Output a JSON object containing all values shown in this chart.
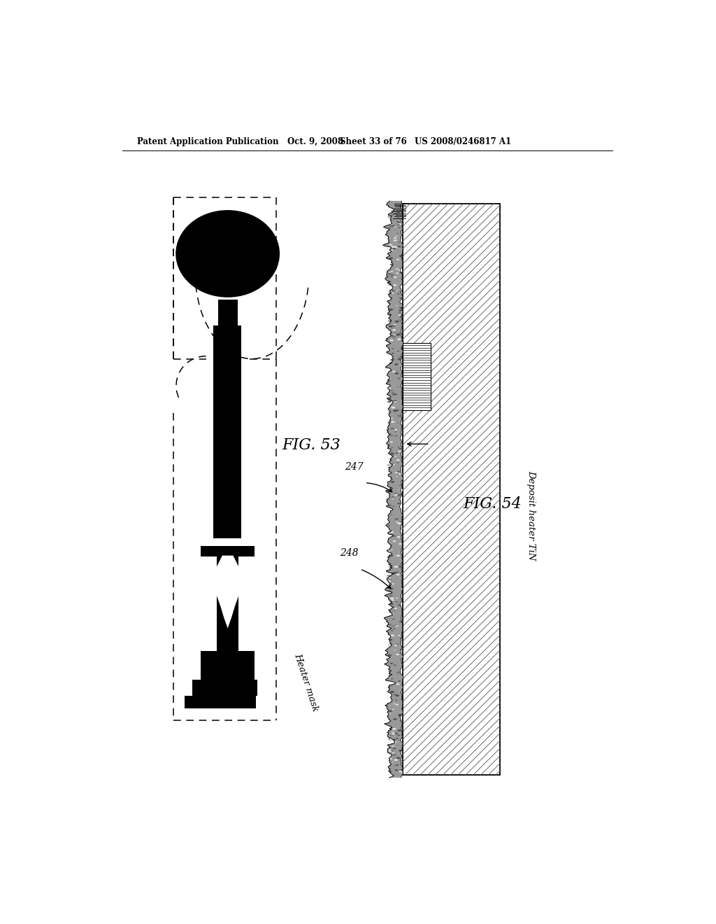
{
  "bg_color": "#ffffff",
  "header_text": "Patent Application Publication",
  "header_date": "Oct. 9, 2008",
  "header_sheet": "Sheet 33 of 76",
  "header_patent": "US 2008/0246817 A1",
  "fig53_label": "FIG. 53",
  "fig54_label": "FIG. 54",
  "label_heater_mask": "Heater mask",
  "label_deposit_heater": "Deposit heater TiN",
  "label_247": "247",
  "label_248": "248",
  "black_fill": "#000000",
  "line_color": "#000000",
  "hatch_color": "#555555"
}
